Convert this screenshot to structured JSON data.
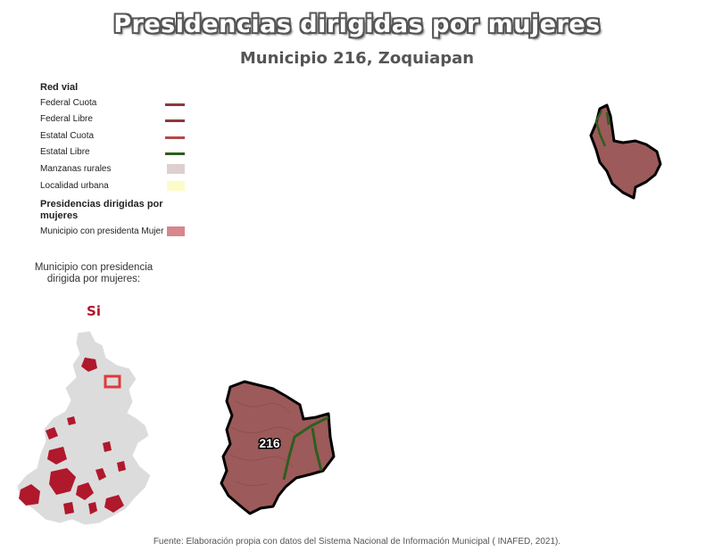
{
  "header": {
    "title": "Presidencias dirigidas por mujeres",
    "subtitle": "Municipio 216, Zoquiapan"
  },
  "legend": {
    "road_heading": "Red vial",
    "road_items": [
      {
        "label": "Federal Cuota",
        "color": "#8b3a3a"
      },
      {
        "label": "Federal Libre",
        "color": "#8b3a3a"
      },
      {
        "label": "Estatal Cuota",
        "color": "#b24a4a"
      },
      {
        "label": "Estatal Libre",
        "color": "#2e5e1e"
      }
    ],
    "area_items": [
      {
        "label": "Manzanas rurales",
        "color": "#ddd0d0"
      },
      {
        "label": "Localidad urbana",
        "color": "#fdfcc8"
      }
    ],
    "women_heading": "Presidencias dirigidas por mujeres",
    "women_items": [
      {
        "label": "Municipio con presidenta Mujer",
        "color": "#d9868e"
      }
    ]
  },
  "inset": {
    "question": "Municipio con presidencia dirigida por mujeres:",
    "answer": "Si",
    "highlight_color": "#b0182c",
    "state_color": "#dcdcdc"
  },
  "map": {
    "municipality_label": "216",
    "fill_color": "#9c5a5a",
    "road_color": "#2e5e1e"
  },
  "footer": {
    "source": "Fuente: Elaboración propia con datos del Sistema Nacional de Información Municipal ( INAFED, 2021)."
  }
}
